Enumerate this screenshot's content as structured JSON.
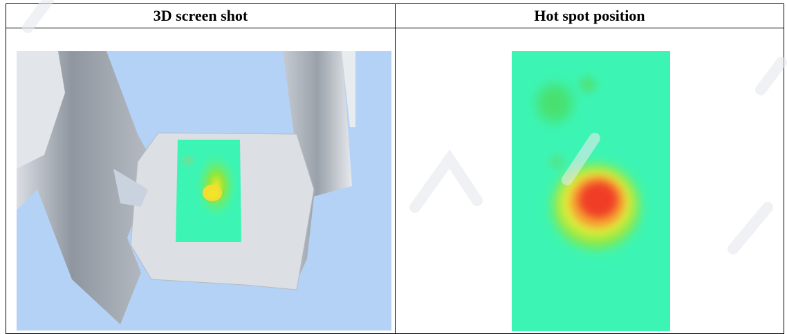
{
  "table": {
    "col1_header": "3D screen shot",
    "col2_header": "Hot spot position"
  },
  "colors": {
    "background_blue": "#b4d2f5",
    "fixture_gray": "#c8cdd4",
    "cool_green": "#3cf5b4",
    "hot_red": "#f03c28"
  }
}
